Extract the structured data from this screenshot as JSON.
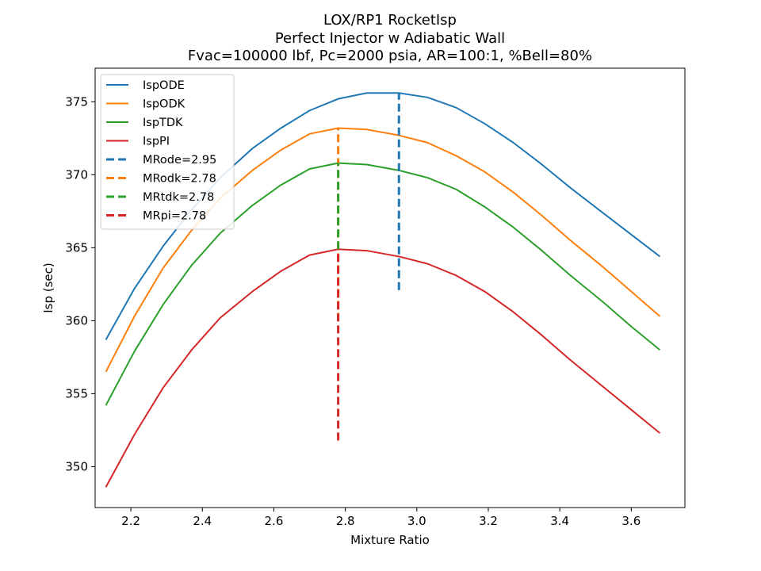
{
  "chart_data": {
    "type": "line",
    "title": [
      "LOX/RP1 RocketIsp",
      "Perfect Injector w Adiabatic Wall",
      "Fvac=100000 lbf, Pc=2000 psia, AR=100:1, %Bell=80%"
    ],
    "xlabel": "Mixture Ratio",
    "ylabel": "Isp (sec)",
    "xlim": [
      2.1,
      3.75
    ],
    "ylim": [
      347.2,
      377.3
    ],
    "xticks": [
      "2.2",
      "2.4",
      "2.6",
      "2.8",
      "3.0",
      "3.2",
      "3.4",
      "3.6"
    ],
    "xtick_values": [
      2.2,
      2.4,
      2.6,
      2.8,
      3.0,
      3.2,
      3.4,
      3.6
    ],
    "yticks": [
      "350",
      "355",
      "360",
      "365",
      "370",
      "375"
    ],
    "ytick_values": [
      350,
      355,
      360,
      365,
      370,
      375
    ],
    "grid": false,
    "legend_position": "top-left",
    "x": [
      2.13,
      2.21,
      2.29,
      2.37,
      2.45,
      2.54,
      2.62,
      2.7,
      2.78,
      2.86,
      2.95,
      3.03,
      3.11,
      3.19,
      3.27,
      3.35,
      3.43,
      3.52,
      3.6,
      3.68
    ],
    "series": [
      {
        "name": "IspODE",
        "color": "#1f77b4",
        "values": [
          358.7,
          362.2,
          365.1,
          367.6,
          369.8,
          371.8,
          373.2,
          374.4,
          375.2,
          375.6,
          375.6,
          375.3,
          374.6,
          373.5,
          372.2,
          370.7,
          369.1,
          367.4,
          365.9,
          364.4
        ]
      },
      {
        "name": "IspODK",
        "color": "#ff7f0e",
        "values": [
          356.5,
          360.3,
          363.6,
          366.2,
          368.4,
          370.3,
          371.7,
          372.8,
          373.2,
          373.1,
          372.7,
          372.2,
          371.3,
          370.2,
          368.8,
          367.2,
          365.5,
          363.7,
          362.0,
          360.3
        ]
      },
      {
        "name": "IspTDK",
        "color": "#2ca02c",
        "values": [
          354.2,
          357.9,
          361.1,
          363.8,
          366.0,
          367.9,
          369.3,
          370.4,
          370.8,
          370.7,
          370.3,
          369.8,
          369.0,
          367.8,
          366.4,
          364.8,
          363.1,
          361.3,
          359.6,
          358.0
        ]
      },
      {
        "name": "IspPI",
        "color": "#d62728",
        "values": [
          348.6,
          352.2,
          355.4,
          358.0,
          360.2,
          362.0,
          363.4,
          364.5,
          364.9,
          364.8,
          364.4,
          363.9,
          363.1,
          362.0,
          360.6,
          359.0,
          357.3,
          355.5,
          353.9,
          352.3
        ]
      }
    ],
    "vlines": [
      {
        "name": "MRode=2.95",
        "color": "#1f77b4",
        "x": 2.95,
        "y": [
          362.1,
          375.6
        ]
      },
      {
        "name": "MRodk=2.78",
        "color": "#ff7f0e",
        "x": 2.78,
        "y": [
          360.0,
          373.2
        ]
      },
      {
        "name": "MRtdk=2.78",
        "color": "#2ca02c",
        "x": 2.78,
        "y": [
          364.9,
          370.8
        ]
      },
      {
        "name": "MRpi=2.78",
        "color": "#d62728",
        "x": 2.78,
        "y": [
          351.8,
          364.9
        ]
      }
    ]
  }
}
